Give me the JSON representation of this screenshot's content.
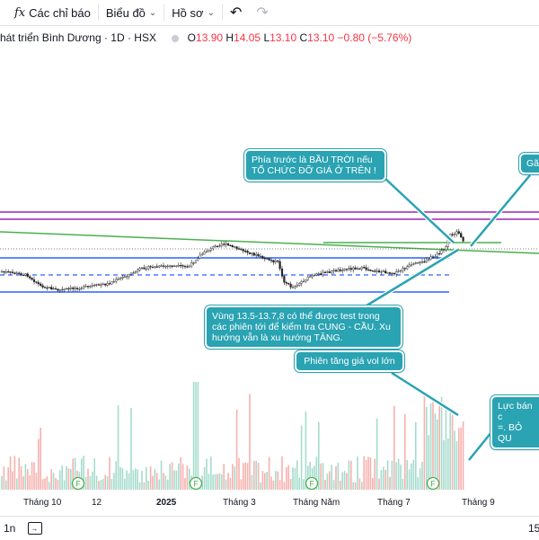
{
  "toolbar": {
    "indicators_icon": "fx",
    "indicators_label": "Các chỉ báo",
    "chart_type_label": "Biểu đồ",
    "profile_label": "Hồ sơ",
    "undo_icon": "↶",
    "redo_icon": "↷"
  },
  "legend": {
    "symbol": "hát triển Bình Dương · 1D · HSX",
    "o_label": "O",
    "o_value": "13.90",
    "h_label": "H",
    "h_value": "14.05",
    "l_label": "L",
    "l_value": "13.10",
    "c_label": "C",
    "c_value": "13.10",
    "change": "−0.80 (−5.76%)"
  },
  "callouts": {
    "sky": "Phía trước là BẦU TRỜI nếu TỔ CHỨC ĐỠ GIÁ Ở TRÊN !",
    "right_top": "Gã",
    "zone": "Vùng 13.5-13.7,8 có thể được test trong các phiên tới để kiểm tra CUNG - CẦU. Xu hướng vẫn là xu hướng TĂNG.",
    "volume": "Phiên tăng giá vol lớn",
    "sell_line1": "Lực bán c",
    "sell_line2": "=. BỎ QU"
  },
  "xaxis": {
    "labels": [
      "Tháng 10",
      "12",
      "2025",
      "Tháng 3",
      "Tháng Năm",
      "Tháng 7",
      "Tháng 9"
    ]
  },
  "event_marker": "F",
  "bottombar": {
    "range_label": "1n",
    "right_value": "15"
  },
  "colors": {
    "up": "#26a69a",
    "down": "#ef5350",
    "blue_line": "#2962ff",
    "purple_line": "#9c27b0",
    "green_line": "#4caf50",
    "callout": "#2aa3b3"
  }
}
